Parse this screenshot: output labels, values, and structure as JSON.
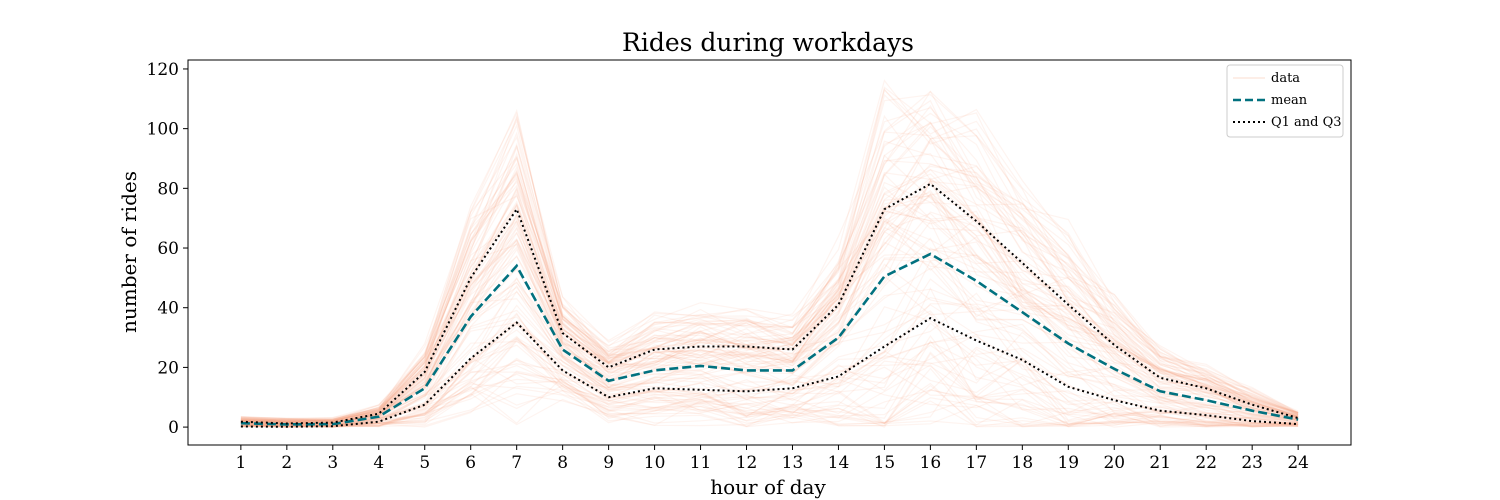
{
  "chart_data": {
    "type": "line",
    "title": "Rides during workdays",
    "xlabel": "hour of day",
    "ylabel": "number of rides",
    "x": [
      1,
      2,
      3,
      4,
      5,
      6,
      7,
      8,
      9,
      10,
      11,
      12,
      13,
      14,
      15,
      16,
      17,
      18,
      19,
      20,
      21,
      22,
      23,
      24
    ],
    "xticks": [
      "1",
      "2",
      "3",
      "4",
      "5",
      "6",
      "7",
      "8",
      "9",
      "10",
      "11",
      "12",
      "13",
      "14",
      "15",
      "16",
      "17",
      "18",
      "19",
      "20",
      "21",
      "22",
      "23",
      "24"
    ],
    "yticks": [
      0,
      20,
      40,
      60,
      80,
      100,
      120
    ],
    "xlim": [
      -0.15,
      25.15
    ],
    "ylim": [
      -6,
      123
    ],
    "grid": false,
    "legend_position": "top-right",
    "colors": {
      "data": "#f4a582",
      "mean": "#01717f",
      "quartiles": "#000000"
    },
    "series": [
      {
        "name": "mean",
        "style": "dashed",
        "values": [
          1.3,
          0.9,
          1.0,
          3.5,
          13.0,
          37.0,
          54.0,
          26.0,
          15.5,
          19.0,
          20.5,
          19.0,
          19.0,
          30.0,
          50.5,
          58.0,
          49.0,
          38.5,
          28.0,
          19.5,
          12.0,
          9.0,
          5.5,
          2.5
        ]
      },
      {
        "name": "Q1 and Q3",
        "style": "dotted",
        "values": [
          1.8,
          1.2,
          1.5,
          4.5,
          18.5,
          50.0,
          73.0,
          31.5,
          20.0,
          26.0,
          27.0,
          27.0,
          26.0,
          41.0,
          73.0,
          81.5,
          69.0,
          55.0,
          41.0,
          27.5,
          16.5,
          13.0,
          7.5,
          3.0
        ]
      },
      {
        "name": "Q1",
        "legend": false,
        "style": "dotted",
        "values": [
          0.2,
          0.1,
          0.3,
          1.8,
          7.5,
          23.0,
          35.0,
          19.0,
          10.0,
          13.0,
          12.5,
          12.0,
          13.0,
          17.0,
          27.0,
          36.5,
          29.0,
          22.5,
          13.5,
          9.0,
          5.5,
          4.0,
          2.0,
          1.0
        ]
      }
    ],
    "legend": [
      {
        "label": "data",
        "style": "faint"
      },
      {
        "label": "mean",
        "style": "dashed"
      },
      {
        "label": "Q1 and Q3",
        "style": "dotted"
      }
    ]
  }
}
